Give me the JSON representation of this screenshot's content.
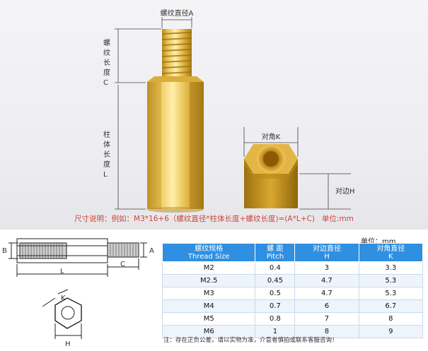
{
  "photo": {
    "label_thread_diameter": "螺纹直径A",
    "label_thread_length": "螺纹长度C",
    "label_body_length": "柱体长度L",
    "label_across_corners": "对角K",
    "label_across_flats": "对边H",
    "caption": "尺寸说明：例如：M3*16+6（螺纹直径*柱体长度+螺纹长度)=(A*L+C)",
    "caption_unit": "单位:mm"
  },
  "drawing": {
    "label_b": "B",
    "label_a": "A",
    "label_c": "C",
    "label_l": "L",
    "label_k": "K",
    "label_h": "H"
  },
  "table": {
    "unit_note": "单位：mm",
    "headers": [
      {
        "cn": "螺纹规格",
        "en": "Thread Size"
      },
      {
        "cn": "螺 距",
        "en": "Pitch"
      },
      {
        "cn": "对边直径",
        "en": "H"
      },
      {
        "cn": "对角直径",
        "en": "K"
      }
    ],
    "rows": [
      [
        "M2",
        "0.4",
        "3",
        "3.3"
      ],
      [
        "M2.5",
        "0.45",
        "4.7",
        "5.3"
      ],
      [
        "M3",
        "0.5",
        "4.7",
        "5.3"
      ],
      [
        "M4",
        "0.7",
        "6",
        "6.7"
      ],
      [
        "M5",
        "0.8",
        "7",
        "8"
      ],
      [
        "M6",
        "1",
        "8",
        "9"
      ]
    ],
    "footnote": "注：存在正负公差，请以实物为准，介意者慎拍或联系客服咨询！"
  }
}
